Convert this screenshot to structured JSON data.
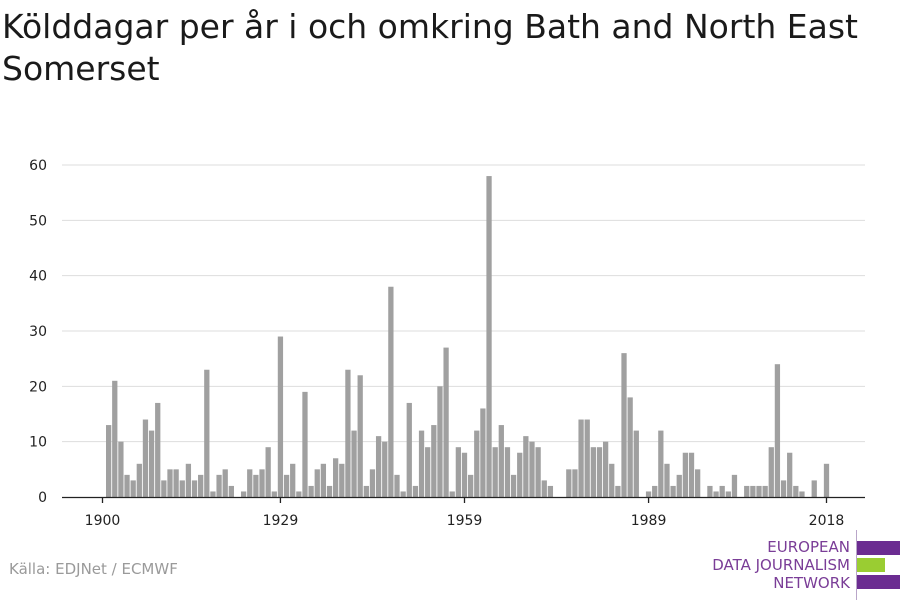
{
  "title": "Kölddagar per år i och omkring Bath and North East Somerset",
  "source": "Källa: EDJNet / ECMWF",
  "logo": {
    "line1": "EUROPEAN",
    "line2": "DATA JOURNALISM",
    "line3": "NETWORK",
    "colors": {
      "text": "#7a3d97",
      "purple": "#6b2c91",
      "green": "#9acd32"
    }
  },
  "colors": {
    "bar": "#a0a0a0",
    "grid": "#dddddd",
    "axis": "#222222",
    "tick_text": "#222222"
  },
  "chart_data": {
    "type": "bar",
    "title": "Kölddagar per år i och omkring Bath and North East Somerset",
    "xlabel": "",
    "ylabel": "",
    "xlim": [
      1900,
      2018
    ],
    "ylim": [
      0,
      60
    ],
    "x_ticks": [
      1900,
      1929,
      1959,
      1989,
      2018
    ],
    "y_ticks": [
      0,
      10,
      20,
      30,
      40,
      50,
      60
    ],
    "grid": "horizontal",
    "legend": "none",
    "x": [
      1900,
      1901,
      1902,
      1903,
      1904,
      1905,
      1906,
      1907,
      1908,
      1909,
      1910,
      1911,
      1912,
      1913,
      1914,
      1915,
      1916,
      1917,
      1918,
      1919,
      1920,
      1921,
      1922,
      1923,
      1924,
      1925,
      1926,
      1927,
      1928,
      1929,
      1930,
      1931,
      1932,
      1933,
      1934,
      1935,
      1936,
      1937,
      1938,
      1939,
      1940,
      1941,
      1942,
      1943,
      1944,
      1945,
      1946,
      1947,
      1948,
      1949,
      1950,
      1951,
      1952,
      1953,
      1954,
      1955,
      1956,
      1957,
      1958,
      1959,
      1960,
      1961,
      1962,
      1963,
      1964,
      1965,
      1966,
      1967,
      1968,
      1969,
      1970,
      1971,
      1972,
      1973,
      1974,
      1975,
      1976,
      1977,
      1978,
      1979,
      1980,
      1981,
      1982,
      1983,
      1984,
      1985,
      1986,
      1987,
      1988,
      1989,
      1990,
      1991,
      1992,
      1993,
      1994,
      1995,
      1996,
      1997,
      1998,
      1999,
      2000,
      2001,
      2002,
      2003,
      2004,
      2005,
      2006,
      2007,
      2008,
      2009,
      2010,
      2011,
      2012,
      2013,
      2014,
      2015,
      2016,
      2017,
      2018
    ],
    "values": [
      0,
      13,
      21,
      10,
      4,
      3,
      6,
      14,
      12,
      17,
      3,
      5,
      5,
      3,
      6,
      3,
      4,
      23,
      1,
      4,
      5,
      2,
      0,
      1,
      5,
      4,
      5,
      9,
      1,
      29,
      4,
      6,
      1,
      19,
      2,
      5,
      6,
      2,
      7,
      6,
      23,
      12,
      22,
      2,
      5,
      11,
      10,
      38,
      4,
      1,
      17,
      2,
      12,
      9,
      13,
      20,
      27,
      1,
      9,
      8,
      4,
      12,
      16,
      58,
      9,
      13,
      9,
      4,
      8,
      11,
      10,
      9,
      3,
      2,
      0,
      0,
      5,
      5,
      14,
      14,
      9,
      9,
      10,
      6,
      2,
      26,
      18,
      12,
      0,
      1,
      2,
      12,
      6,
      2,
      4,
      8,
      8,
      5,
      0,
      2,
      1,
      2,
      1,
      4,
      0,
      2,
      2,
      2,
      2,
      9,
      24,
      3,
      8,
      2,
      1,
      0,
      3,
      0,
      6
    ]
  }
}
